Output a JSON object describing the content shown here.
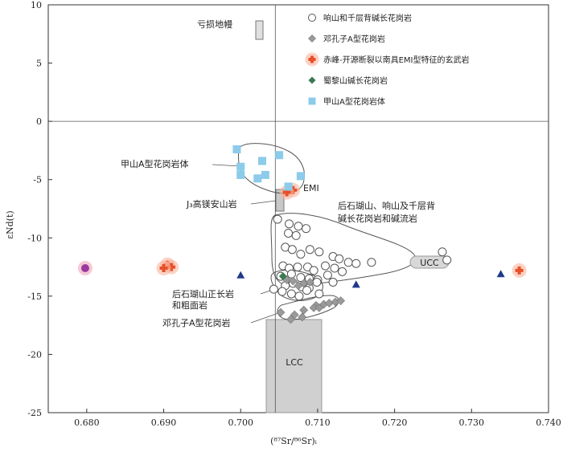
{
  "chart_data": {
    "type": "scatter",
    "xlabel": "(⁸⁷Sr/⁸⁶Sr)ᵢ",
    "ylabel": "εNd(t)",
    "xlim": [
      0.675,
      0.74
    ],
    "ylim": [
      -25,
      10
    ],
    "xticks": [
      "0.680",
      "0.690",
      "0.700",
      "0.710",
      "0.720",
      "0.730",
      "0.740"
    ],
    "yticks": [
      "10",
      "5",
      "0",
      "-5",
      "-10",
      "-15",
      "-20",
      "-25"
    ],
    "legend_position": "top-right",
    "legend": [
      {
        "label": "响山和千层背碱长花岗岩",
        "marker": "open-circle"
      },
      {
        "label": "邓孔子A型花岗岩",
        "marker": "gray-diamond"
      },
      {
        "label": "赤峰-开源断裂以南具EMI型特征的玄武岩",
        "marker": "red-star"
      },
      {
        "label": "蜀黎山碱长花岗岩",
        "marker": "green-diamond"
      },
      {
        "label": "甲山A型花岗岩体",
        "marker": "blue-square"
      }
    ],
    "annotations": {
      "mantle": "亏损地幔",
      "jiashan": "甲山A型花岗岩体",
      "emi": "EMI",
      "j3": "J₃高镁安山岩",
      "houshi": "后石瑚山、响山及千层背",
      "houshi2": "碱长花岗岩和碱流岩",
      "ucc": "UCC",
      "syenite": "后石瑚山正长岩",
      "syenite2": "和粗面岩",
      "dengkong": "邓孔子A型花岗岩",
      "lcc": "LCC"
    },
    "series": [
      {
        "name": "响山和千层背碱长花岗岩",
        "marker": "open-circle",
        "points": [
          [
            0.7048,
            -8.4
          ],
          [
            0.7063,
            -8.8
          ],
          [
            0.7075,
            -9.0
          ],
          [
            0.7085,
            -9.2
          ],
          [
            0.7062,
            -9.6
          ],
          [
            0.7072,
            -9.8
          ],
          [
            0.7058,
            -10.8
          ],
          [
            0.7067,
            -11.0
          ],
          [
            0.7078,
            -11.4
          ],
          [
            0.709,
            -11.0
          ],
          [
            0.7102,
            -11.2
          ],
          [
            0.712,
            -11.6
          ],
          [
            0.7128,
            -11.8
          ],
          [
            0.714,
            -12.1
          ],
          [
            0.715,
            -12.2
          ],
          [
            0.717,
            -12.1
          ],
          [
            0.7055,
            -12.4
          ],
          [
            0.7063,
            -12.6
          ],
          [
            0.7074,
            -12.5
          ],
          [
            0.7087,
            -12.5
          ],
          [
            0.7095,
            -12.8
          ],
          [
            0.711,
            -12.4
          ],
          [
            0.7122,
            -12.6
          ],
          [
            0.7132,
            -12.9
          ],
          [
            0.7052,
            -13.3
          ],
          [
            0.7066,
            -13.1
          ],
          [
            0.7078,
            -13.4
          ],
          [
            0.7089,
            -13.5
          ],
          [
            0.71,
            -13.6
          ],
          [
            0.7113,
            -13.2
          ],
          [
            0.712,
            -13.8
          ],
          [
            0.7058,
            -14.1
          ],
          [
            0.7068,
            -13.9
          ],
          [
            0.7079,
            -14.2
          ],
          [
            0.7089,
            -14.3
          ],
          [
            0.7099,
            -13.8
          ],
          [
            0.7066,
            -14.8
          ],
          [
            0.7076,
            -15.0
          ],
          [
            0.7086,
            -14.5
          ],
          [
            0.7054,
            -14.6
          ],
          [
            0.7043,
            -14.4
          ],
          [
            0.7102,
            -14.8
          ],
          [
            0.7262,
            -11.2
          ],
          [
            0.7268,
            -11.9
          ]
        ]
      },
      {
        "name": "邓孔子A型花岗岩",
        "marker": "gray-diamond",
        "points": [
          [
            0.706,
            -13.6
          ],
          [
            0.7068,
            -13.7
          ],
          [
            0.7075,
            -14.1
          ],
          [
            0.7082,
            -13.9
          ],
          [
            0.709,
            -13.8
          ],
          [
            0.7098,
            -15.8
          ],
          [
            0.7108,
            -15.7
          ],
          [
            0.7115,
            -15.6
          ],
          [
            0.7123,
            -15.5
          ],
          [
            0.713,
            -15.4
          ],
          [
            0.7095,
            -16.0
          ],
          [
            0.7102,
            -16.0
          ],
          [
            0.7082,
            -16.2
          ],
          [
            0.707,
            -16.6
          ],
          [
            0.7052,
            -16.4
          ],
          [
            0.7065,
            -17.0
          ],
          [
            0.708,
            -16.8
          ]
        ]
      },
      {
        "name": "赤峰-开源断裂以南具EMI型特征的玄武岩",
        "marker": "red-star",
        "points": [
          [
            0.6905,
            -12.3
          ],
          [
            0.691,
            -12.5
          ],
          [
            0.69,
            -12.6
          ],
          [
            0.7362,
            -12.8
          ],
          [
            0.7068,
            -5.9
          ],
          [
            0.706,
            -6.1
          ]
        ]
      },
      {
        "name": "蜀黎山碱长花岗岩",
        "marker": "green-diamond",
        "points": [
          [
            0.7055,
            -13.3
          ]
        ]
      },
      {
        "name": "甲山A型花岗岩体",
        "marker": "blue-square",
        "points": [
          [
            0.6995,
            -2.4
          ],
          [
            0.7028,
            -3.4
          ],
          [
            0.7,
            -3.9
          ],
          [
            0.7032,
            -4.6
          ],
          [
            0.7,
            -4.6
          ],
          [
            0.7022,
            -4.9
          ],
          [
            0.705,
            -2.9
          ],
          [
            0.7078,
            -4.7
          ],
          [
            0.7062,
            -5.6
          ]
        ]
      },
      {
        "name": "unlabeled-triangle",
        "marker": "blue-triangle",
        "points": [
          [
            0.7,
            -13.2
          ],
          [
            0.715,
            -14.0
          ],
          [
            0.7338,
            -13.1
          ]
        ]
      },
      {
        "name": "unlabeled-purple",
        "marker": "purple-circle",
        "points": [
          [
            0.6798,
            -12.6
          ]
        ]
      }
    ]
  },
  "colors": {
    "axis": "#333333",
    "open_circle_stroke": "#555555",
    "gray_diamond": "#9a9a9a",
    "red_star": "#e8502a",
    "red_halo": "#f9b49c",
    "green_diamond": "#3a7a52",
    "blue_square": "#8ccbea",
    "blue_triangle": "#1f3a8a",
    "purple_circle": "#9a3aa0",
    "purple_halo": "#f0a4b8",
    "lcc_fill": "#d0d0d0"
  }
}
